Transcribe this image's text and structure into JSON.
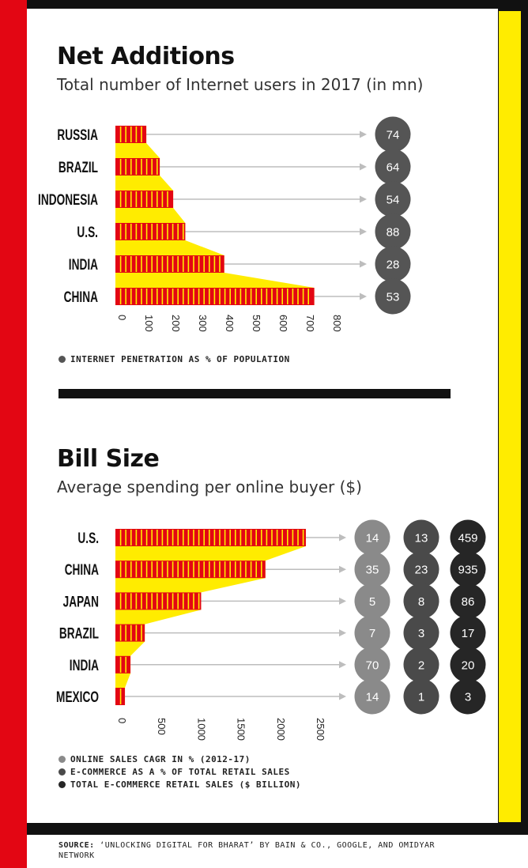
{
  "chart_data": [
    {
      "type": "bar",
      "orientation": "horizontal",
      "title": "Net Additions",
      "subtitle": "Total number of Internet users in 2017 (in mn)",
      "categories": [
        "RUSSIA",
        "BRAZIL",
        "INDONESIA",
        "U.S.",
        "INDIA",
        "CHINA"
      ],
      "values": [
        115,
        165,
        215,
        260,
        405,
        740
      ],
      "ticks": [
        "0",
        "100",
        "200",
        "300",
        "400",
        "500",
        "600",
        "700",
        "800"
      ],
      "xlim": [
        0,
        800
      ],
      "circle_series": [
        {
          "name": "INTERNET PENETRATION AS % OF POPULATION",
          "color": "#555555",
          "values": [
            74,
            64,
            54,
            88,
            28,
            53
          ]
        }
      ]
    },
    {
      "type": "bar",
      "orientation": "horizontal",
      "title": "Bill Size",
      "subtitle": "Average spending per online buyer ($)",
      "categories": [
        "U.S.",
        "CHINA",
        "JAPAN",
        "BRAZIL",
        "INDIA",
        "MEXICO"
      ],
      "values": [
        2400,
        1890,
        1080,
        370,
        190,
        120
      ],
      "ticks": [
        "0",
        "500",
        "1000",
        "1500",
        "2000",
        "2500"
      ],
      "xlim": [
        0,
        2500
      ],
      "circle_series": [
        {
          "name": "ONLINE SALES CAGR IN % (2012-17)",
          "color": "#8a8a8a",
          "values": [
            14,
            35,
            5,
            7,
            70,
            14
          ]
        },
        {
          "name": "E-COMMERCE AS A % OF TOTAL RETAIL SALES",
          "color": "#4a4a4a",
          "values": [
            13,
            23,
            8,
            3,
            2,
            1
          ]
        },
        {
          "name": "TOTAL E-COMMERCE RETAIL SALES ($ BILLION)",
          "color": "#262626",
          "values": [
            459,
            935,
            86,
            17,
            20,
            3
          ]
        }
      ]
    }
  ],
  "source": {
    "label": "SOURCE:",
    "text": " ‘UNLOCKING DIGITAL FOR BHARAT’ BY BAIN & CO., GOOGLE, AND OMIDYAR NETWORK"
  },
  "colors": {
    "bar_red": "#e30613",
    "bar_yellow": "#ffec00",
    "arrow": "#bdbdbd"
  }
}
